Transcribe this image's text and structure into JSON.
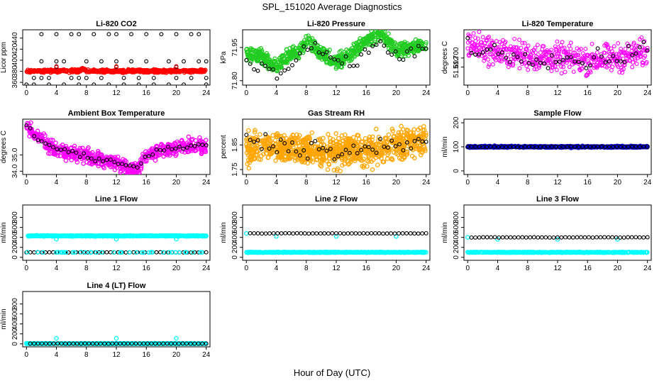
{
  "figure": {
    "title": "SPL_151020  Average Diagnostics",
    "xlabel": "Hour of Day (UTC)"
  },
  "colors": {
    "black": "#000000",
    "red": "#ff0000",
    "green": "#22cc22",
    "magenta": "#ff00ff",
    "orange": "#ffa500",
    "blue": "#0000cc",
    "cyan": "#00ffff"
  },
  "chart_data": [
    {
      "type": "scatter",
      "title": "Li-820 CO2",
      "ylabel": "Licor ppm",
      "xlim": [
        -0.5,
        24.5
      ],
      "ylim": [
        355,
        455
      ],
      "xticks": [
        0,
        4,
        8,
        12,
        16,
        20,
        24
      ],
      "yticks": [
        360,
        380,
        400,
        420,
        440
      ],
      "series": [
        {
          "color": "red",
          "marker": "filled-dense",
          "baseline": 380.5,
          "noise": 1.2,
          "density": 500,
          "bumps": [
            [
              7.5,
              3.5,
              0.5
            ]
          ]
        },
        {
          "color": "black",
          "marker": "circle",
          "points": [
            [
              0,
              356
            ],
            [
              1,
              356
            ],
            [
              1,
              368
            ],
            [
              2,
              368
            ],
            [
              2,
              398
            ],
            [
              2,
              447
            ],
            [
              3,
              356
            ],
            [
              3,
              368
            ],
            [
              4,
              388
            ],
            [
              4,
              398
            ],
            [
              4,
              447
            ],
            [
              5,
              398
            ],
            [
              5,
              356
            ],
            [
              6,
              368
            ],
            [
              6,
              447
            ],
            [
              7,
              447
            ],
            [
              7,
              356
            ],
            [
              7,
              368
            ],
            [
              8,
              398
            ],
            [
              8,
              368
            ],
            [
              9,
              447
            ],
            [
              9,
              356
            ],
            [
              10,
              368
            ],
            [
              10,
              398
            ],
            [
              11,
              447
            ],
            [
              11,
              356
            ],
            [
              12,
              388
            ],
            [
              12,
              398
            ],
            [
              12,
              447
            ],
            [
              13,
              368
            ],
            [
              13,
              356
            ],
            [
              14,
              398
            ],
            [
              14,
              447
            ],
            [
              15,
              368
            ],
            [
              15,
              356
            ],
            [
              16,
              447
            ],
            [
              16,
              398
            ],
            [
              17,
              368
            ],
            [
              17,
              356
            ],
            [
              18,
              447
            ],
            [
              19,
              398
            ],
            [
              19,
              356
            ],
            [
              20,
              388
            ],
            [
              20,
              368
            ],
            [
              20,
              447
            ],
            [
              21,
              398
            ],
            [
              21,
              356
            ],
            [
              22,
              368
            ],
            [
              22,
              447
            ],
            [
              23,
              398
            ],
            [
              23,
              447
            ],
            [
              24,
              356
            ],
            [
              24,
              368
            ],
            [
              24,
              398
            ]
          ]
        },
        {
          "color": "red",
          "marker": "circle",
          "points": [
            [
              4,
              389
            ],
            [
              12,
              389
            ],
            [
              20,
              389
            ],
            [
              7.5,
              386
            ]
          ]
        }
      ]
    },
    {
      "type": "scatter",
      "title": "Li-820 Pressure",
      "ylabel": "kPa",
      "xlim": [
        -0.5,
        24.5
      ],
      "ylim": [
        71.78,
        72.03
      ],
      "xticks": [
        0,
        4,
        8,
        12,
        16,
        20,
        24
      ],
      "yticks": [
        71.8,
        71.95
      ],
      "ytick_labels": [
        "71.80",
        "71.95"
      ],
      "series": [
        {
          "color": "green",
          "marker": "filled-dense",
          "trend": [
            [
              0,
              71.92
            ],
            [
              2,
              71.91
            ],
            [
              4,
              71.86
            ],
            [
              5,
              71.9
            ],
            [
              7,
              71.93
            ],
            [
              8,
              71.98
            ],
            [
              10,
              71.92
            ],
            [
              12,
              71.88
            ],
            [
              14,
              71.92
            ],
            [
              16,
              71.98
            ],
            [
              18,
              72.01
            ],
            [
              20,
              71.94
            ],
            [
              22,
              71.95
            ],
            [
              24,
              71.96
            ]
          ],
          "noise": 0.016,
          "density": 700
        },
        {
          "color": "black",
          "marker": "circle",
          "trend": [
            [
              0,
              71.89
            ],
            [
              3,
              71.86
            ],
            [
              5,
              71.82
            ],
            [
              7,
              71.92
            ],
            [
              8,
              71.95
            ],
            [
              10,
              71.92
            ],
            [
              12,
              71.88
            ],
            [
              14,
              71.86
            ],
            [
              16,
              71.93
            ],
            [
              18,
              71.96
            ],
            [
              20,
              71.92
            ],
            [
              22,
              71.92
            ],
            [
              24,
              71.95
            ]
          ],
          "noise": 0.02,
          "count": 48
        }
      ]
    },
    {
      "type": "scatter",
      "title": "Li-820 Temperature",
      "ylabel": "degrees C",
      "xlim": [
        -0.5,
        24.5
      ],
      "ylim": [
        51.676,
        51.725
      ],
      "xticks": [
        0,
        4,
        8,
        12,
        16,
        20,
        24
      ],
      "yticks": [
        51.692,
        51.7
      ],
      "ytick_labels": [
        "51.692",
        "51.700"
      ],
      "series": [
        {
          "color": "magenta",
          "marker": "circle",
          "trend": [
            [
              0,
              51.713
            ],
            [
              4,
              51.705
            ],
            [
              8,
              51.702
            ],
            [
              12,
              51.7
            ],
            [
              16,
              51.698
            ],
            [
              20,
              51.7
            ],
            [
              24,
              51.705
            ]
          ],
          "noise": 0.006,
          "count": 520
        },
        {
          "color": "black",
          "marker": "circle",
          "trend": [
            [
              0,
              51.712
            ],
            [
              4,
              51.704
            ],
            [
              8,
              51.702
            ],
            [
              12,
              51.7
            ],
            [
              16,
              51.698
            ],
            [
              20,
              51.702
            ],
            [
              24,
              51.708
            ]
          ],
          "noise": 0.004,
          "count": 48
        }
      ]
    },
    {
      "type": "scatter",
      "title": "Ambient Box Temperature",
      "ylabel": "degrees C",
      "xlim": [
        -0.5,
        24.5
      ],
      "ylim": [
        33.8,
        37.2
      ],
      "xticks": [
        0,
        4,
        8,
        12,
        16,
        20,
        24
      ],
      "yticks": [
        34.0,
        35.0
      ],
      "ytick_labels": [
        "34.0",
        "35.0"
      ],
      "series": [
        {
          "color": "magenta",
          "marker": "filled-dense",
          "trend": [
            [
              0,
              36.8
            ],
            [
              1,
              36.2
            ],
            [
              4,
              35.3
            ],
            [
              8,
              34.9
            ],
            [
              12,
              34.5
            ],
            [
              14,
              34.1
            ],
            [
              15,
              34.2
            ],
            [
              16,
              34.9
            ],
            [
              18,
              35.3
            ],
            [
              22,
              35.6
            ],
            [
              24,
              35.5
            ]
          ],
          "noise": 0.22,
          "density": 600
        },
        {
          "color": "black",
          "marker": "circle",
          "trend": [
            [
              0,
              36.9
            ],
            [
              1,
              36.1
            ],
            [
              4,
              35.4
            ],
            [
              8,
              34.9
            ],
            [
              12,
              34.6
            ],
            [
              14,
              34.2
            ],
            [
              15,
              34.3
            ],
            [
              16,
              35.0
            ],
            [
              18,
              35.3
            ],
            [
              22,
              35.6
            ],
            [
              24,
              35.6
            ]
          ],
          "noise": 0.08,
          "count": 48
        }
      ]
    },
    {
      "type": "scatter",
      "title": "Gas Stream RH",
      "ylabel": "percent",
      "xlim": [
        -0.5,
        24.5
      ],
      "ylim": [
        1.73,
        1.955
      ],
      "xticks": [
        0,
        4,
        8,
        12,
        16,
        20,
        24
      ],
      "yticks": [
        1.75,
        1.85
      ],
      "ytick_labels": [
        "1.75",
        "1.85"
      ],
      "series": [
        {
          "color": "orange",
          "marker": "filled-dense",
          "trend": [
            [
              0,
              1.83
            ],
            [
              4,
              1.84
            ],
            [
              8,
              1.83
            ],
            [
              12,
              1.82
            ],
            [
              16,
              1.83
            ],
            [
              20,
              1.85
            ],
            [
              24,
              1.87
            ]
          ],
          "noise": 0.03,
          "density": 900
        },
        {
          "color": "black",
          "marker": "circle",
          "trend": [
            [
              0,
              1.87
            ],
            [
              4,
              1.85
            ],
            [
              8,
              1.84
            ],
            [
              12,
              1.82
            ],
            [
              16,
              1.83
            ],
            [
              20,
              1.84
            ],
            [
              24,
              1.86
            ]
          ],
          "noise": 0.02,
          "count": 48
        }
      ]
    },
    {
      "type": "scatter",
      "title": "Sample Flow",
      "ylabel": "ml/min",
      "xlim": [
        -0.5,
        24.5
      ],
      "ylim": [
        -15,
        215
      ],
      "xticks": [
        0,
        4,
        8,
        12,
        16,
        20,
        24
      ],
      "yticks": [
        0,
        100,
        200
      ],
      "series": [
        {
          "color": "blue",
          "marker": "filled-dense",
          "baseline": 100,
          "noise": 1.5,
          "density": 600
        },
        {
          "color": "black",
          "marker": "circle",
          "baseline": 100,
          "noise": 0.5,
          "count": 48
        }
      ]
    },
    {
      "type": "scatter",
      "title": "Line 1 Flow",
      "ylabel": "ml/min",
      "xlim": [
        -0.5,
        24.5
      ],
      "ylim": [
        -60,
        1050
      ],
      "xticks": [
        0,
        4,
        8,
        12,
        16,
        20,
        24
      ],
      "yticks": [
        0,
        200,
        400,
        600,
        800
      ],
      "series": [
        {
          "color": "cyan",
          "marker": "filled-dense",
          "baseline": 430,
          "noise": 4,
          "density": 500,
          "extra": [
            [
              4,
              365
            ],
            [
              12,
              365
            ],
            [
              20,
              365
            ]
          ]
        },
        {
          "color": "black",
          "marker": "circle",
          "baseline": 100,
          "noise": 1,
          "count": 48
        },
        {
          "color": "cyan",
          "marker": "filled-dense",
          "baseline": 100,
          "noise": 2,
          "density": 40
        }
      ]
    },
    {
      "type": "scatter",
      "title": "Line 2 Flow",
      "ylabel": "ml/min",
      "xlim": [
        -0.5,
        24.5
      ],
      "ylim": [
        -60,
        1050
      ],
      "xticks": [
        0,
        4,
        8,
        12,
        16,
        20,
        24
      ],
      "yticks": [
        0,
        200,
        400,
        600,
        800
      ],
      "series": [
        {
          "color": "cyan",
          "marker": "filled-dense",
          "baseline": 100,
          "noise": 3,
          "density": 500,
          "extra": [
            [
              0,
              480
            ],
            [
              4,
              420
            ],
            [
              12,
              420
            ],
            [
              20,
              420
            ]
          ]
        },
        {
          "color": "black",
          "marker": "circle",
          "baseline": 480,
          "noise": 2,
          "count": 46,
          "start": 0.5
        }
      ]
    },
    {
      "type": "scatter",
      "title": "Line 3 Flow",
      "ylabel": "ml/min",
      "xlim": [
        -0.5,
        24.5
      ],
      "ylim": [
        -60,
        1050
      ],
      "xticks": [
        0,
        4,
        8,
        12,
        16,
        20,
        24
      ],
      "yticks": [
        0,
        200,
        400,
        600,
        800
      ],
      "series": [
        {
          "color": "cyan",
          "marker": "filled-dense",
          "baseline": 100,
          "noise": 3,
          "density": 500,
          "extra": [
            [
              0,
              400
            ],
            [
              4,
              360
            ],
            [
              12,
              360
            ],
            [
              20,
              360
            ]
          ]
        },
        {
          "color": "black",
          "marker": "circle",
          "baseline": 400,
          "noise": 2,
          "count": 46,
          "start": 0.5
        }
      ]
    },
    {
      "type": "scatter",
      "title": "Line 4 (LT) Flow",
      "ylabel": "ml/min",
      "xlim": [
        -0.5,
        24.5
      ],
      "ylim": [
        -60,
        1050
      ],
      "xticks": [
        0,
        4,
        8,
        12,
        16,
        20,
        24
      ],
      "yticks": [
        0,
        200,
        400,
        600,
        800
      ],
      "series": [
        {
          "color": "cyan",
          "marker": "filled-dense",
          "baseline": 5,
          "noise": 2,
          "density": 400,
          "extra": [
            [
              0,
              10
            ],
            [
              4,
              110
            ],
            [
              12,
              110
            ],
            [
              20,
              110
            ]
          ]
        },
        {
          "color": "black",
          "marker": "circle",
          "baseline": 5,
          "noise": 1,
          "count": 46,
          "start": 0.5
        }
      ]
    }
  ]
}
